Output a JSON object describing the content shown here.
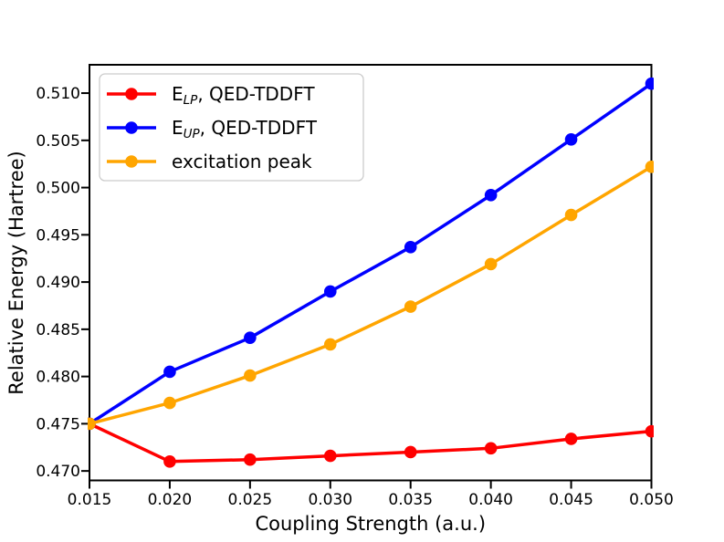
{
  "figure": {
    "background": "#ffffff",
    "spine_color": "#000000",
    "text_color": "#000000",
    "legend_border_color": "#cccccc",
    "legend_bg": "rgba(255,255,255,0.85)"
  },
  "chart_data": {
    "type": "line",
    "title": "",
    "xlabel": "Coupling Strength (a.u.)",
    "ylabel": "Relative Energy (Hartree)",
    "xlim": [
      0.015,
      0.05
    ],
    "ylim": [
      0.469,
      0.513
    ],
    "grid": false,
    "legend_position": "upper left",
    "x": [
      0.015,
      0.02,
      0.025,
      0.03,
      0.035,
      0.04,
      0.045,
      0.05
    ],
    "x_ticks": [
      0.015,
      0.02,
      0.025,
      0.03,
      0.035,
      0.04,
      0.045,
      0.05
    ],
    "x_tick_labels": [
      "0.015",
      "0.020",
      "0.025",
      "0.030",
      "0.035",
      "0.040",
      "0.045",
      "0.050"
    ],
    "y_ticks": [
      0.47,
      0.475,
      0.48,
      0.485,
      0.49,
      0.495,
      0.5,
      0.505,
      0.51
    ],
    "y_tick_labels": [
      "0.470",
      "0.475",
      "0.480",
      "0.485",
      "0.490",
      "0.495",
      "0.500",
      "0.505",
      "0.510"
    ],
    "series": [
      {
        "name": "E_LP, QED-TDDFT",
        "label_main": "E",
        "label_sub": "LP",
        "label_suffix": ", QED-TDDFT",
        "color": "#ff0000",
        "marker": "circle",
        "values": [
          0.475,
          0.471,
          0.4712,
          0.4716,
          0.472,
          0.4724,
          0.4734,
          0.4742
        ]
      },
      {
        "name": "E_UP, QED-TDDFT",
        "label_main": "E",
        "label_sub": "UP",
        "label_suffix": ", QED-TDDFT",
        "color": "#0000ff",
        "marker": "circle",
        "values": [
          0.475,
          0.4805,
          0.4841,
          0.489,
          0.4937,
          0.4992,
          0.5051,
          0.511
        ]
      },
      {
        "name": "excitation peak",
        "label_main": "excitation peak",
        "label_sub": "",
        "label_suffix": "",
        "color": "#ffa500",
        "marker": "circle",
        "values": [
          0.475,
          0.4772,
          0.4801,
          0.4834,
          0.4874,
          0.4919,
          0.4971,
          0.5022
        ]
      }
    ]
  }
}
